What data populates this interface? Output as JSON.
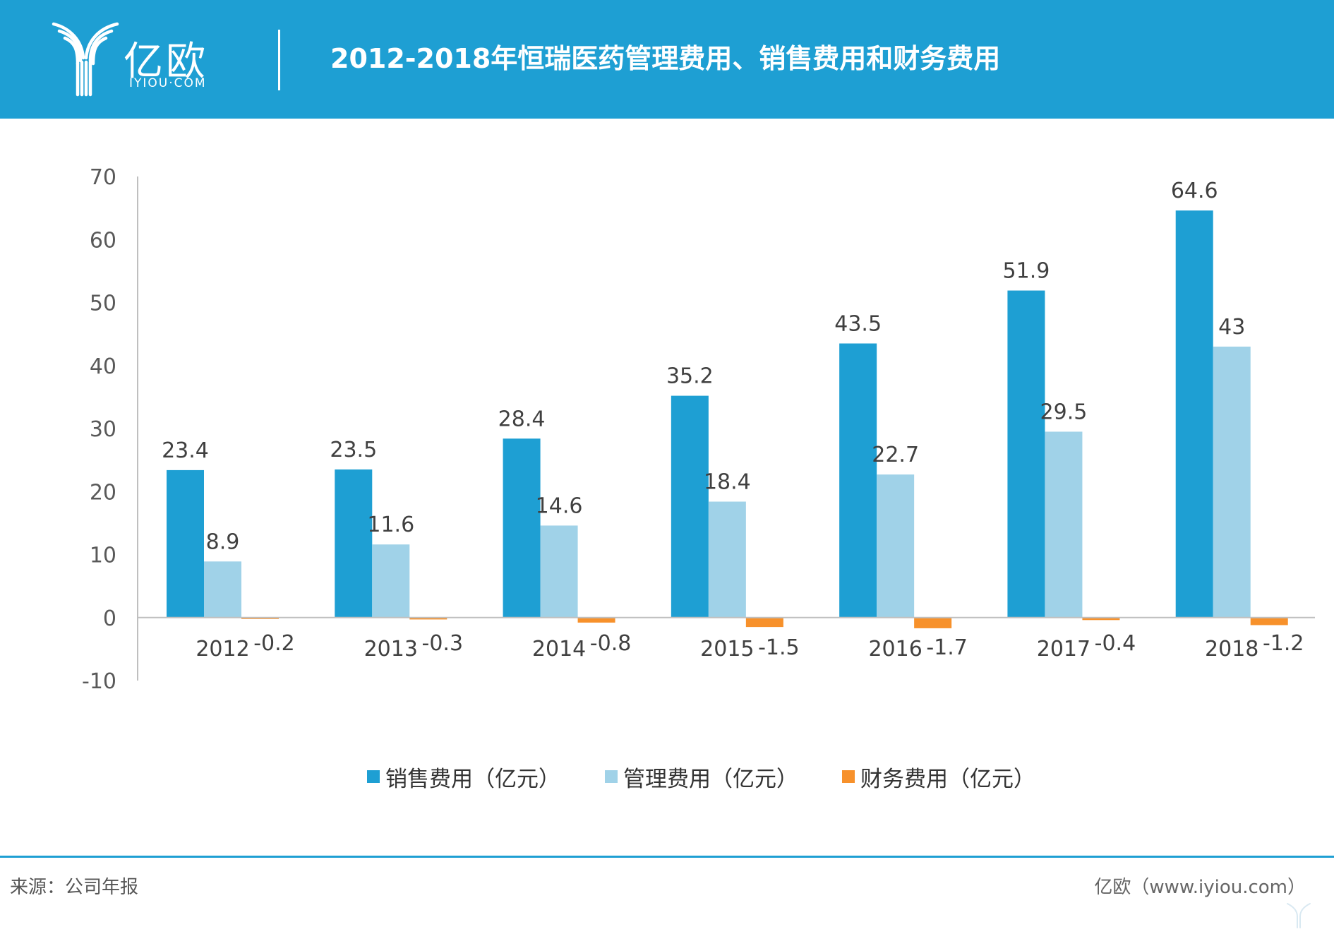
{
  "header": {
    "logo_text": "亿欧",
    "logo_domain": "IYIOU·COM",
    "title": "2012-2018年恒瑞医药管理费用、销售费用和财务费用"
  },
  "colors": {
    "header_bg": "#1e9fd3",
    "sales": "#1e9fd3",
    "admin": "#a0d2e8",
    "finance": "#f7912b"
  },
  "chart_data": {
    "type": "bar",
    "categories": [
      "2012",
      "2013",
      "2014",
      "2015",
      "2016",
      "2017",
      "2018"
    ],
    "series": [
      {
        "name": "销售费用（亿元）",
        "color": "#1e9fd3",
        "values": [
          23.4,
          23.5,
          28.4,
          35.2,
          43.5,
          51.9,
          64.6
        ]
      },
      {
        "name": "管理费用（亿元）",
        "color": "#a0d2e8",
        "values": [
          8.9,
          11.6,
          14.6,
          18.4,
          22.7,
          29.5,
          43
        ]
      },
      {
        "name": "财务费用（亿元）",
        "color": "#f7912b",
        "values": [
          -0.2,
          -0.3,
          -0.8,
          -1.5,
          -1.7,
          -0.4,
          -1.2
        ]
      }
    ],
    "y_ticks": [
      "70",
      "60",
      "50",
      "40",
      "30",
      "20",
      "10",
      "0",
      "-10"
    ],
    "ylim": [
      -10,
      70
    ],
    "grid": false,
    "legend_position": "bottom"
  },
  "footer": {
    "source": "来源：公司年报",
    "site": "亿欧（www.iyiou.com）"
  }
}
